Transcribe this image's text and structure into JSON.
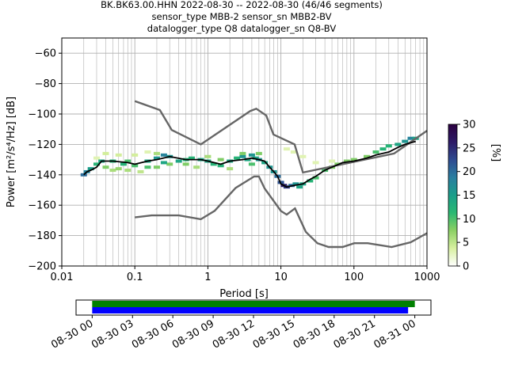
{
  "figure": {
    "title_lines": [
      "BK.BK63.00.HHN   2022-08-30 -- 2022-08-30  (46/46 segments)",
      "sensor_type MBB-2 sensor_sn MBB2-BV",
      "datalogger_type Q8 datalogger_sn Q8-BV"
    ]
  },
  "chart_data": [
    {
      "type": "heatmap",
      "title": "",
      "xlabel": "Period [s]",
      "ylabel": "Power [m²/s⁴/Hz] [dB]",
      "xscale": "log",
      "xlim": [
        0.01,
        1000
      ],
      "ylim": [
        -200,
        -50
      ],
      "x_tick_labels": [
        "0.01",
        "0.1",
        "1",
        "10",
        "100",
        "1000"
      ],
      "x_ticks": [
        0.01,
        0.1,
        1,
        10,
        100,
        1000
      ],
      "y_ticks": [
        -200,
        -180,
        -160,
        -140,
        -120,
        -100,
        -80,
        -60
      ],
      "y_tick_labels": [
        "−200",
        "−180",
        "−160",
        "−140",
        "−120",
        "−100",
        "−80",
        "−60"
      ],
      "grid": true,
      "mean_psd": {
        "period": [
          0.02,
          0.022,
          0.025,
          0.03,
          0.035,
          0.05,
          0.08,
          0.1,
          0.15,
          0.2,
          0.3,
          0.5,
          0.8,
          1,
          1.5,
          2,
          3,
          4,
          5,
          6,
          7,
          8,
          9,
          10,
          12,
          15,
          20,
          25,
          30,
          40,
          50,
          70,
          100,
          150,
          200,
          300,
          400,
          500,
          700
        ],
        "db": [
          -140,
          -138,
          -137,
          -135,
          -131,
          -131,
          -132,
          -133,
          -131,
          -130,
          -128,
          -130,
          -130,
          -131,
          -133,
          -131,
          -130,
          -129,
          -130,
          -131,
          -135,
          -138,
          -141,
          -146,
          -148,
          -147,
          -146,
          -143,
          -141,
          -137,
          -135,
          -132,
          -131,
          -129,
          -127,
          -125,
          -122,
          -120,
          -118
        ]
      },
      "nhnm": {
        "period": [
          0.1,
          0.22,
          0.32,
          0.8,
          3.8,
          4.6,
          6.3,
          7.9,
          15.4,
          20,
          354.8,
          1000
        ],
        "db": [
          -91.5,
          -97.4,
          -110.5,
          -120,
          -98,
          -96.5,
          -101,
          -113.5,
          -120,
          -138.5,
          -126,
          -111
        ]
      },
      "nlnm": {
        "period": [
          0.1,
          0.17,
          0.4,
          0.8,
          1.24,
          2.4,
          4.3,
          5,
          6,
          10,
          12,
          15.6,
          21.9,
          31.6,
          45,
          70,
          101,
          154,
          328,
          600,
          1000
        ],
        "db": [
          -168,
          -166.7,
          -166.7,
          -169.2,
          -163.7,
          -148.6,
          -141.1,
          -141.1,
          -149,
          -163.8,
          -166.2,
          -162.1,
          -177.5,
          -185,
          -187.5,
          -187.5,
          -185,
          -185,
          -187.5,
          -184.4,
          -178.4
        ]
      },
      "density_cells": [
        [
          0.02,
          -140,
          20
        ],
        [
          0.022,
          -138,
          18
        ],
        [
          0.025,
          -136,
          15
        ],
        [
          0.03,
          -133,
          12
        ],
        [
          0.03,
          -129,
          3
        ],
        [
          0.035,
          -131,
          14
        ],
        [
          0.04,
          -126,
          4
        ],
        [
          0.04,
          -135,
          8
        ],
        [
          0.05,
          -131,
          12
        ],
        [
          0.05,
          -137,
          6
        ],
        [
          0.06,
          -127,
          4
        ],
        [
          0.06,
          -136,
          7
        ],
        [
          0.07,
          -133,
          12
        ],
        [
          0.08,
          -131,
          10
        ],
        [
          0.08,
          -137,
          6
        ],
        [
          0.1,
          -134,
          10
        ],
        [
          0.1,
          -127,
          4
        ],
        [
          0.12,
          -138,
          5
        ],
        [
          0.15,
          -131,
          14
        ],
        [
          0.15,
          -125,
          3
        ],
        [
          0.2,
          -129,
          16
        ],
        [
          0.2,
          -135,
          8
        ],
        [
          0.25,
          -127,
          18
        ],
        [
          0.3,
          -128,
          16
        ],
        [
          0.3,
          -133,
          8
        ],
        [
          0.4,
          -131,
          14
        ],
        [
          0.5,
          -130,
          12
        ],
        [
          0.5,
          -133,
          8
        ],
        [
          0.6,
          -129,
          12
        ],
        [
          0.8,
          -130,
          14
        ],
        [
          1,
          -131,
          14
        ],
        [
          1.2,
          -133,
          12
        ],
        [
          1.5,
          -134,
          12
        ],
        [
          1.5,
          -130,
          8
        ],
        [
          2,
          -131,
          14
        ],
        [
          2.5,
          -129,
          12
        ],
        [
          3,
          -128,
          16
        ],
        [
          3.5,
          -130,
          14
        ],
        [
          4,
          -127,
          16
        ],
        [
          4.5,
          -129,
          14
        ],
        [
          5,
          -130,
          16
        ],
        [
          6,
          -132,
          14
        ],
        [
          7,
          -135,
          16
        ],
        [
          8,
          -138,
          16
        ],
        [
          9,
          -141,
          20
        ],
        [
          10,
          -145,
          22
        ],
        [
          11,
          -147,
          26
        ],
        [
          12,
          -148,
          24
        ],
        [
          14,
          -147,
          20
        ],
        [
          16,
          -146,
          16
        ],
        [
          18,
          -148,
          14
        ],
        [
          20,
          -146,
          14
        ],
        [
          25,
          -144,
          12
        ],
        [
          30,
          -142,
          10
        ],
        [
          40,
          -137,
          10
        ],
        [
          50,
          -135,
          8
        ],
        [
          60,
          -133,
          8
        ],
        [
          80,
          -131,
          8
        ],
        [
          100,
          -130,
          8
        ],
        [
          150,
          -128,
          8
        ],
        [
          200,
          -125,
          10
        ],
        [
          250,
          -123,
          12
        ],
        [
          300,
          -121,
          12
        ],
        [
          400,
          -120,
          14
        ],
        [
          500,
          -118,
          16
        ],
        [
          600,
          -116,
          18
        ],
        [
          700,
          -116,
          14
        ],
        [
          12,
          -123,
          3
        ],
        [
          15,
          -125,
          3
        ],
        [
          20,
          -128,
          3
        ],
        [
          30,
          -132,
          3
        ],
        [
          50,
          -131,
          3
        ],
        [
          0.15,
          -135,
          10
        ],
        [
          0.2,
          -126,
          6
        ],
        [
          0.25,
          -132,
          14
        ],
        [
          0.7,
          -135,
          6
        ],
        [
          1,
          -128,
          6
        ],
        [
          2,
          -136,
          6
        ],
        [
          3,
          -126,
          8
        ],
        [
          4,
          -133,
          10
        ],
        [
          5,
          -126,
          8
        ]
      ],
      "colorbar": {
        "label": "[%]",
        "min": 0,
        "max": 30,
        "ticks": [
          0,
          5,
          10,
          15,
          20,
          25,
          30
        ],
        "stops": [
          "#ffffff",
          "#d8f0a0",
          "#8cd064",
          "#2ab872",
          "#1b9e8a",
          "#2a7ea0",
          "#2e4a90",
          "#2d1a66",
          "#2b0040"
        ]
      },
      "colors": {
        "mean": "#000000",
        "noise_models": "#666666",
        "grid": "#b0b0b0"
      }
    },
    {
      "type": "bar",
      "title": "",
      "xlabel": "",
      "ylabel": "",
      "x_range": [
        "08-30 00",
        "08-31 03"
      ],
      "x_tick_labels": [
        "08-30 00",
        "08-30 03",
        "08-30 06",
        "08-30 09",
        "08-30 12",
        "08-30 15",
        "08-30 18",
        "08-30 21",
        "08-31 00"
      ],
      "x_ticks_hours": [
        0,
        3,
        6,
        9,
        12,
        15,
        18,
        21,
        24
      ],
      "xlim_hours": [
        -1.2,
        25.2
      ],
      "bars": [
        {
          "start_hour": 0,
          "end_hour": 24.0,
          "color": "#008000"
        },
        {
          "start_hour": 0,
          "end_hour": 23.5,
          "color": "#0000ff"
        }
      ]
    }
  ]
}
